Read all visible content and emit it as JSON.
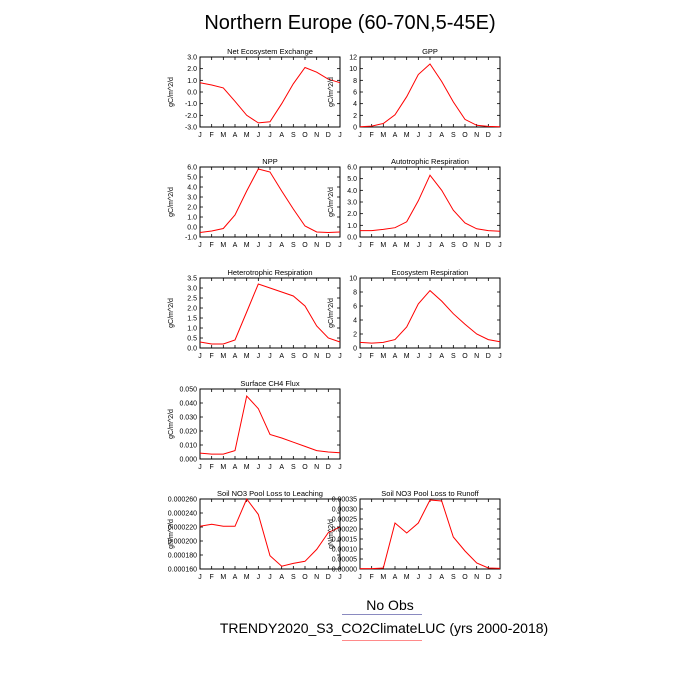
{
  "figure": {
    "title": "Northern Europe (60-70N,5-45E)",
    "legend": {
      "obs_label": "No Obs",
      "model_label": "TRENDY2020_S3_CO2ClimateLUC (yrs 2000-2018)",
      "obs_color": "#8a8ac0",
      "model_color": "#ff8a8a"
    },
    "line_color": "#ff0000"
  },
  "chart_data": [
    {
      "type": "line",
      "title": "Net Ecosystem Exchange",
      "ylabel": "gC/m^2/d",
      "categories": [
        "J",
        "F",
        "M",
        "A",
        "M",
        "J",
        "J",
        "A",
        "S",
        "O",
        "N",
        "D",
        "J"
      ],
      "ylim": [
        -3.0,
        3.0
      ],
      "yticks": [
        -3.0,
        -2.0,
        -1.0,
        0.0,
        1.0,
        2.0,
        3.0
      ],
      "ytick_labels": [
        "-3.0",
        "-2.0",
        "-1.0",
        "0.0",
        "1.0",
        "2.0",
        "3.0"
      ],
      "values": [
        0.8,
        0.6,
        0.35,
        -0.8,
        -2.0,
        -2.65,
        -2.55,
        -1.0,
        0.7,
        2.1,
        1.7,
        1.1,
        0.8
      ]
    },
    {
      "type": "line",
      "title": "GPP",
      "ylabel": "gC/m^2/d",
      "categories": [
        "J",
        "F",
        "M",
        "A",
        "M",
        "J",
        "J",
        "A",
        "S",
        "O",
        "N",
        "D",
        "J"
      ],
      "ylim": [
        0,
        12
      ],
      "yticks": [
        0,
        2,
        4,
        6,
        8,
        10,
        12
      ],
      "ytick_labels": [
        "0",
        "2",
        "4",
        "6",
        "8",
        "10",
        "12"
      ],
      "values": [
        0.05,
        0.15,
        0.6,
        2.1,
        5.2,
        9.0,
        10.8,
        7.8,
        4.3,
        1.3,
        0.3,
        0.1,
        0.05
      ]
    },
    {
      "type": "line",
      "title": "NPP",
      "ylabel": "gC/m^2/d",
      "categories": [
        "J",
        "F",
        "M",
        "A",
        "M",
        "J",
        "J",
        "A",
        "S",
        "O",
        "N",
        "D",
        "J"
      ],
      "ylim": [
        -1.0,
        6.0
      ],
      "yticks": [
        -1.0,
        0.0,
        1.0,
        2.0,
        3.0,
        4.0,
        5.0,
        6.0
      ],
      "ytick_labels": [
        "-1.0",
        "0.0",
        "1.0",
        "2.0",
        "3.0",
        "4.0",
        "5.0",
        "6.0"
      ],
      "values": [
        -0.55,
        -0.4,
        -0.15,
        1.2,
        3.6,
        5.8,
        5.5,
        3.6,
        1.8,
        0.1,
        -0.5,
        -0.55,
        -0.5
      ]
    },
    {
      "type": "line",
      "title": "Autotrophic Respiration",
      "ylabel": "gC/m^2/d",
      "categories": [
        "J",
        "F",
        "M",
        "A",
        "M",
        "J",
        "J",
        "A",
        "S",
        "O",
        "N",
        "D",
        "J"
      ],
      "ylim": [
        0.0,
        6.0
      ],
      "yticks": [
        0.0,
        1.0,
        2.0,
        3.0,
        4.0,
        5.0,
        6.0
      ],
      "ytick_labels": [
        "0.0",
        "1.0",
        "2.0",
        "3.0",
        "4.0",
        "5.0",
        "6.0"
      ],
      "values": [
        0.55,
        0.55,
        0.65,
        0.8,
        1.3,
        3.1,
        5.3,
        4.0,
        2.3,
        1.2,
        0.7,
        0.55,
        0.5
      ]
    },
    {
      "type": "line",
      "title": "Heterotrophic Respiration",
      "ylabel": "gC/m^2/d",
      "categories": [
        "J",
        "F",
        "M",
        "A",
        "M",
        "J",
        "J",
        "A",
        "S",
        "O",
        "N",
        "D",
        "J"
      ],
      "ylim": [
        0.0,
        3.5
      ],
      "yticks": [
        0.0,
        0.5,
        1.0,
        1.5,
        2.0,
        2.5,
        3.0,
        3.5
      ],
      "ytick_labels": [
        "0.0",
        "0.5",
        "1.0",
        "1.5",
        "2.0",
        "2.5",
        "3.0",
        "3.5"
      ],
      "values": [
        0.3,
        0.2,
        0.2,
        0.4,
        1.8,
        3.2,
        3.0,
        2.8,
        2.6,
        2.1,
        1.1,
        0.5,
        0.3
      ]
    },
    {
      "type": "line",
      "title": "Ecosystem Respiration",
      "ylabel": "gC/m^2/d",
      "categories": [
        "J",
        "F",
        "M",
        "A",
        "M",
        "J",
        "J",
        "A",
        "S",
        "O",
        "N",
        "D",
        "J"
      ],
      "ylim": [
        0,
        10
      ],
      "yticks": [
        0,
        2,
        4,
        6,
        8,
        10
      ],
      "ytick_labels": [
        "0",
        "2",
        "4",
        "6",
        "8",
        "10"
      ],
      "values": [
        0.8,
        0.7,
        0.8,
        1.2,
        3.0,
        6.3,
        8.2,
        6.7,
        4.9,
        3.4,
        2.0,
        1.2,
        0.9
      ]
    },
    {
      "type": "line",
      "title": "Surface CH4 Flux",
      "ylabel": "gC/m^2/d",
      "categories": [
        "J",
        "F",
        "M",
        "A",
        "M",
        "J",
        "J",
        "A",
        "S",
        "O",
        "N",
        "D",
        "J"
      ],
      "ylim": [
        0.0,
        0.05
      ],
      "yticks": [
        0.0,
        0.01,
        0.02,
        0.03,
        0.04,
        0.05
      ],
      "ytick_labels": [
        "0.000",
        "0.010",
        "0.020",
        "0.030",
        "0.040",
        "0.050"
      ],
      "values": [
        0.0042,
        0.0035,
        0.0035,
        0.006,
        0.045,
        0.036,
        0.0175,
        0.015,
        0.012,
        0.009,
        0.006,
        0.005,
        0.0045
      ]
    },
    {
      "type": "line",
      "title": "Soil NO3 Pool Loss to Leaching",
      "ylabel": "gN/m^2/d",
      "categories": [
        "J",
        "F",
        "M",
        "A",
        "M",
        "J",
        "J",
        "A",
        "S",
        "O",
        "N",
        "D",
        "J"
      ],
      "ylim": [
        0.00016,
        0.00026
      ],
      "yticks": [
        0.00016,
        0.00018,
        0.0002,
        0.00022,
        0.00024,
        0.00026
      ],
      "ytick_labels": [
        "0.000160",
        "0.000180",
        "0.000200",
        "0.000220",
        "0.000240",
        "0.000260"
      ],
      "values": [
        0.000221,
        0.000224,
        0.000221,
        0.000221,
        0.00026,
        0.000238,
        0.000179,
        0.000164,
        0.000168,
        0.000171,
        0.000188,
        0.000212,
        0.00022
      ]
    },
    {
      "type": "line",
      "title": "Soil NO3 Pool Loss to Runoff",
      "ylabel": "gN/m^2/d",
      "categories": [
        "J",
        "F",
        "M",
        "A",
        "M",
        "J",
        "J",
        "A",
        "S",
        "O",
        "N",
        "D",
        "J"
      ],
      "ylim": [
        0.0,
        0.00035
      ],
      "yticks": [
        0.0,
        5e-05,
        0.0001,
        0.00015,
        0.0002,
        0.00025,
        0.0003,
        0.00035
      ],
      "ytick_labels": [
        "0.00000",
        "0.00005",
        "0.00010",
        "0.00015",
        "0.00020",
        "0.00025",
        "0.00030",
        "0.00035"
      ],
      "values": [
        2e-06,
        2e-06,
        5e-06,
        0.00023,
        0.00018,
        0.00023,
        0.000345,
        0.00034,
        0.00016,
        9e-05,
        3e-05,
        5e-06,
        3e-06
      ]
    }
  ]
}
